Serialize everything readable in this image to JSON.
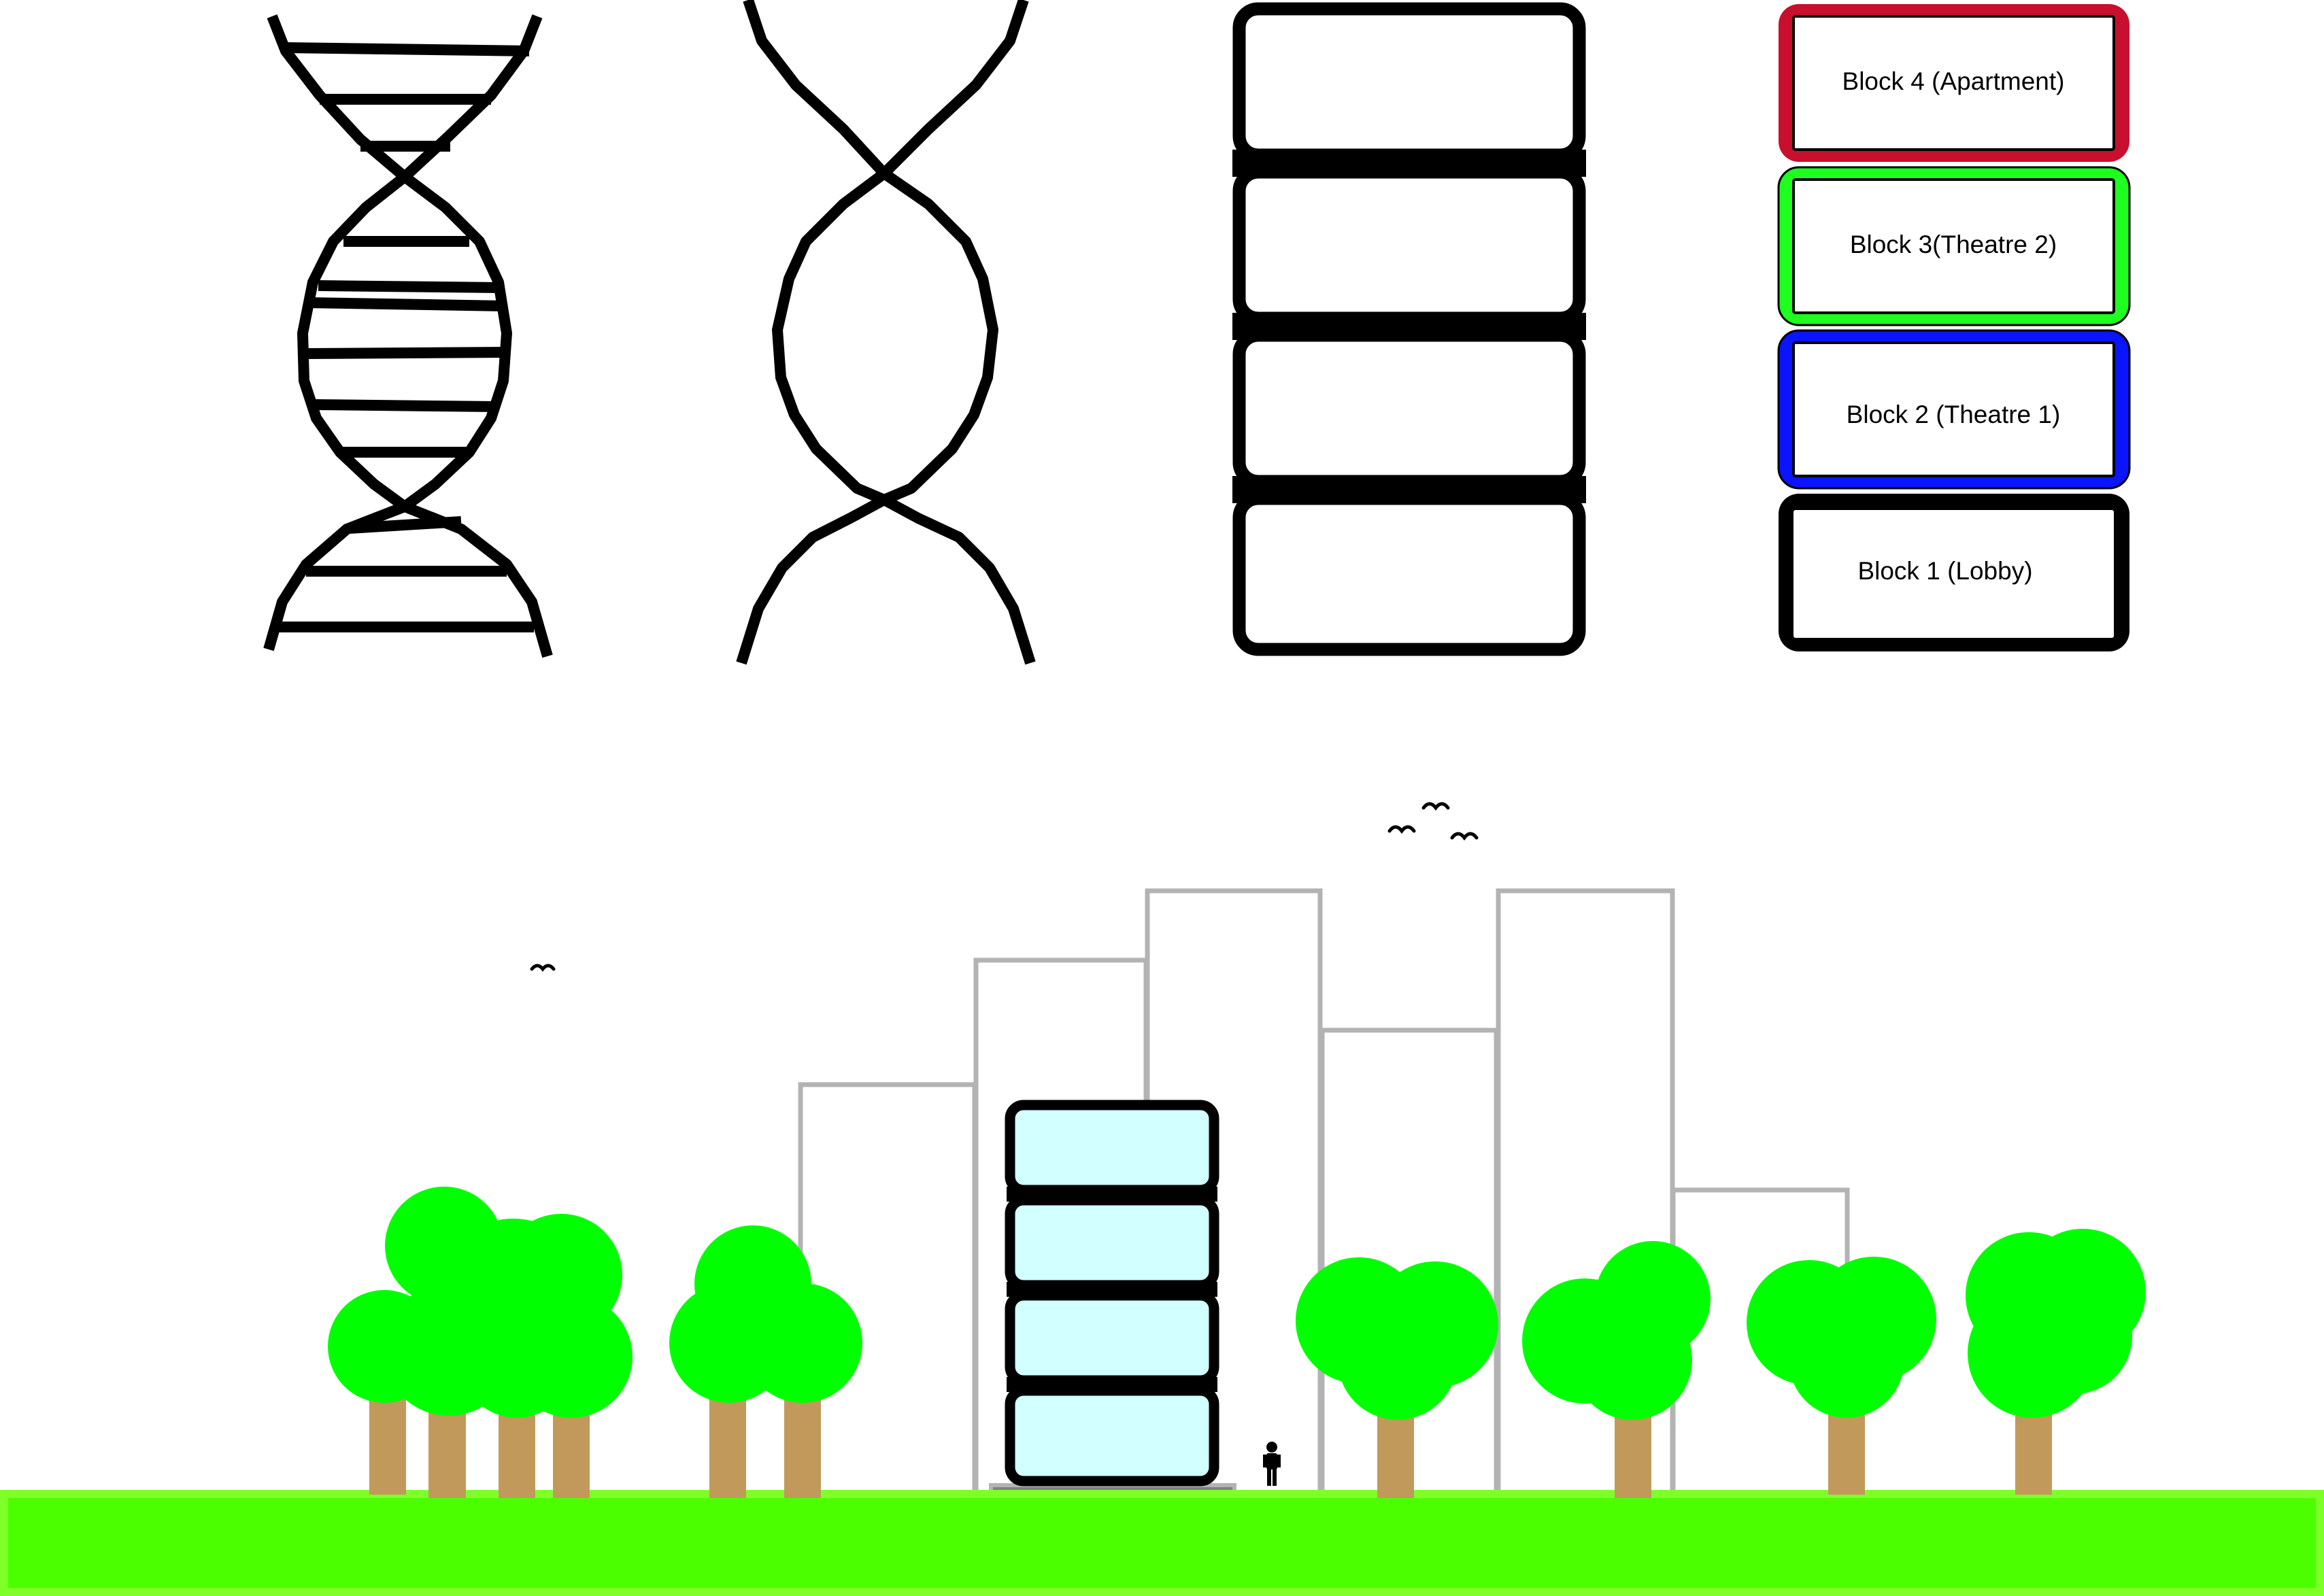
{
  "colors": {
    "outline": "#000000",
    "block_4_border": "#c8102e",
    "block_3_border": "#1fff1f",
    "block_2_border": "#0a14ff",
    "block_1_border": "#000000",
    "building_outline": "#b3b3b3",
    "glass_fill": "#d2ffff",
    "ground_fill": "#4cff00",
    "ground_border": "#7fff2a",
    "foliage": "#00ff00",
    "trunk": "#c19a5b",
    "base_slab": "#808080"
  },
  "block_stack": {
    "blocks": [
      {
        "label": "Block 4 (Apartment)"
      },
      {
        "label": "Block 3(Theatre 2)"
      },
      {
        "label": "Block 2 (Theatre 1)"
      },
      {
        "label": "Block 1 (Lobby)"
      }
    ]
  },
  "scene": {
    "icons": [
      "helix-icon",
      "twisted-strand-icon",
      "stacked-block-icon",
      "tree-icon",
      "bird-icon",
      "person-icon",
      "building-icon"
    ]
  }
}
